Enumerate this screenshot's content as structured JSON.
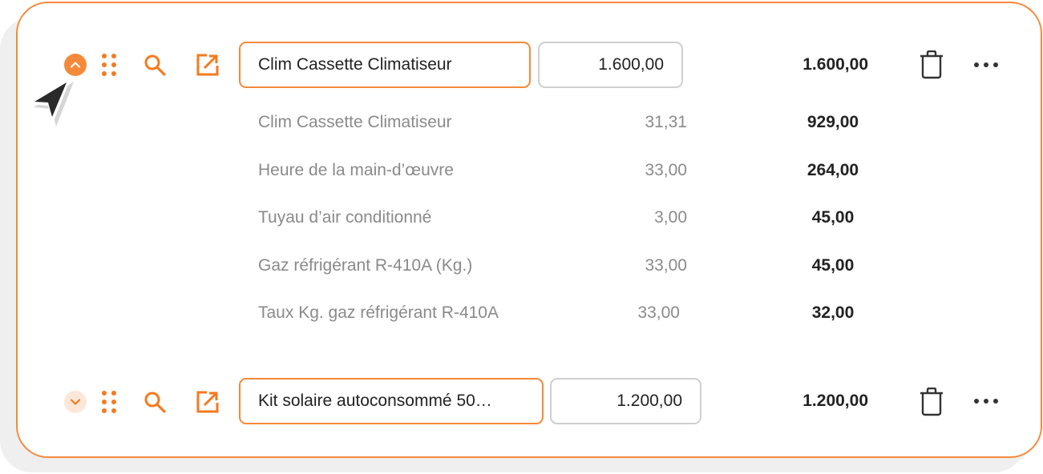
{
  "accent_color": "#f5893a",
  "items": [
    {
      "name": "Clim Cassette Climatiseur",
      "quantity": "1.600,00",
      "total": "1.600,00",
      "expanded": true,
      "components": [
        {
          "name": "Clim Cassette Climatiseur",
          "quantity": "31,31",
          "total": "929,00"
        },
        {
          "name": "Heure de la main-d’œuvre",
          "quantity": "33,00",
          "total": "264,00"
        },
        {
          "name": "Tuyau d’air conditionné",
          "quantity": "3,00",
          "total": "45,00"
        },
        {
          "name": "Gaz réfrigérant R-410A (Kg.)",
          "quantity": "33,00",
          "total": "45,00"
        },
        {
          "name": "Taux Kg. gaz réfrigérant R-410A",
          "quantity": "33,00",
          "total": "32,00"
        }
      ]
    },
    {
      "name": "Kit solaire autoconsommé 50…",
      "quantity": "1.200,00",
      "total": "1.200,00",
      "expanded": false
    }
  ],
  "icons": [
    "chevron-up-icon",
    "chevron-down-icon",
    "drag-handle-icon",
    "search-icon",
    "external-link-icon",
    "trash-icon",
    "more-icon",
    "cursor-icon"
  ]
}
